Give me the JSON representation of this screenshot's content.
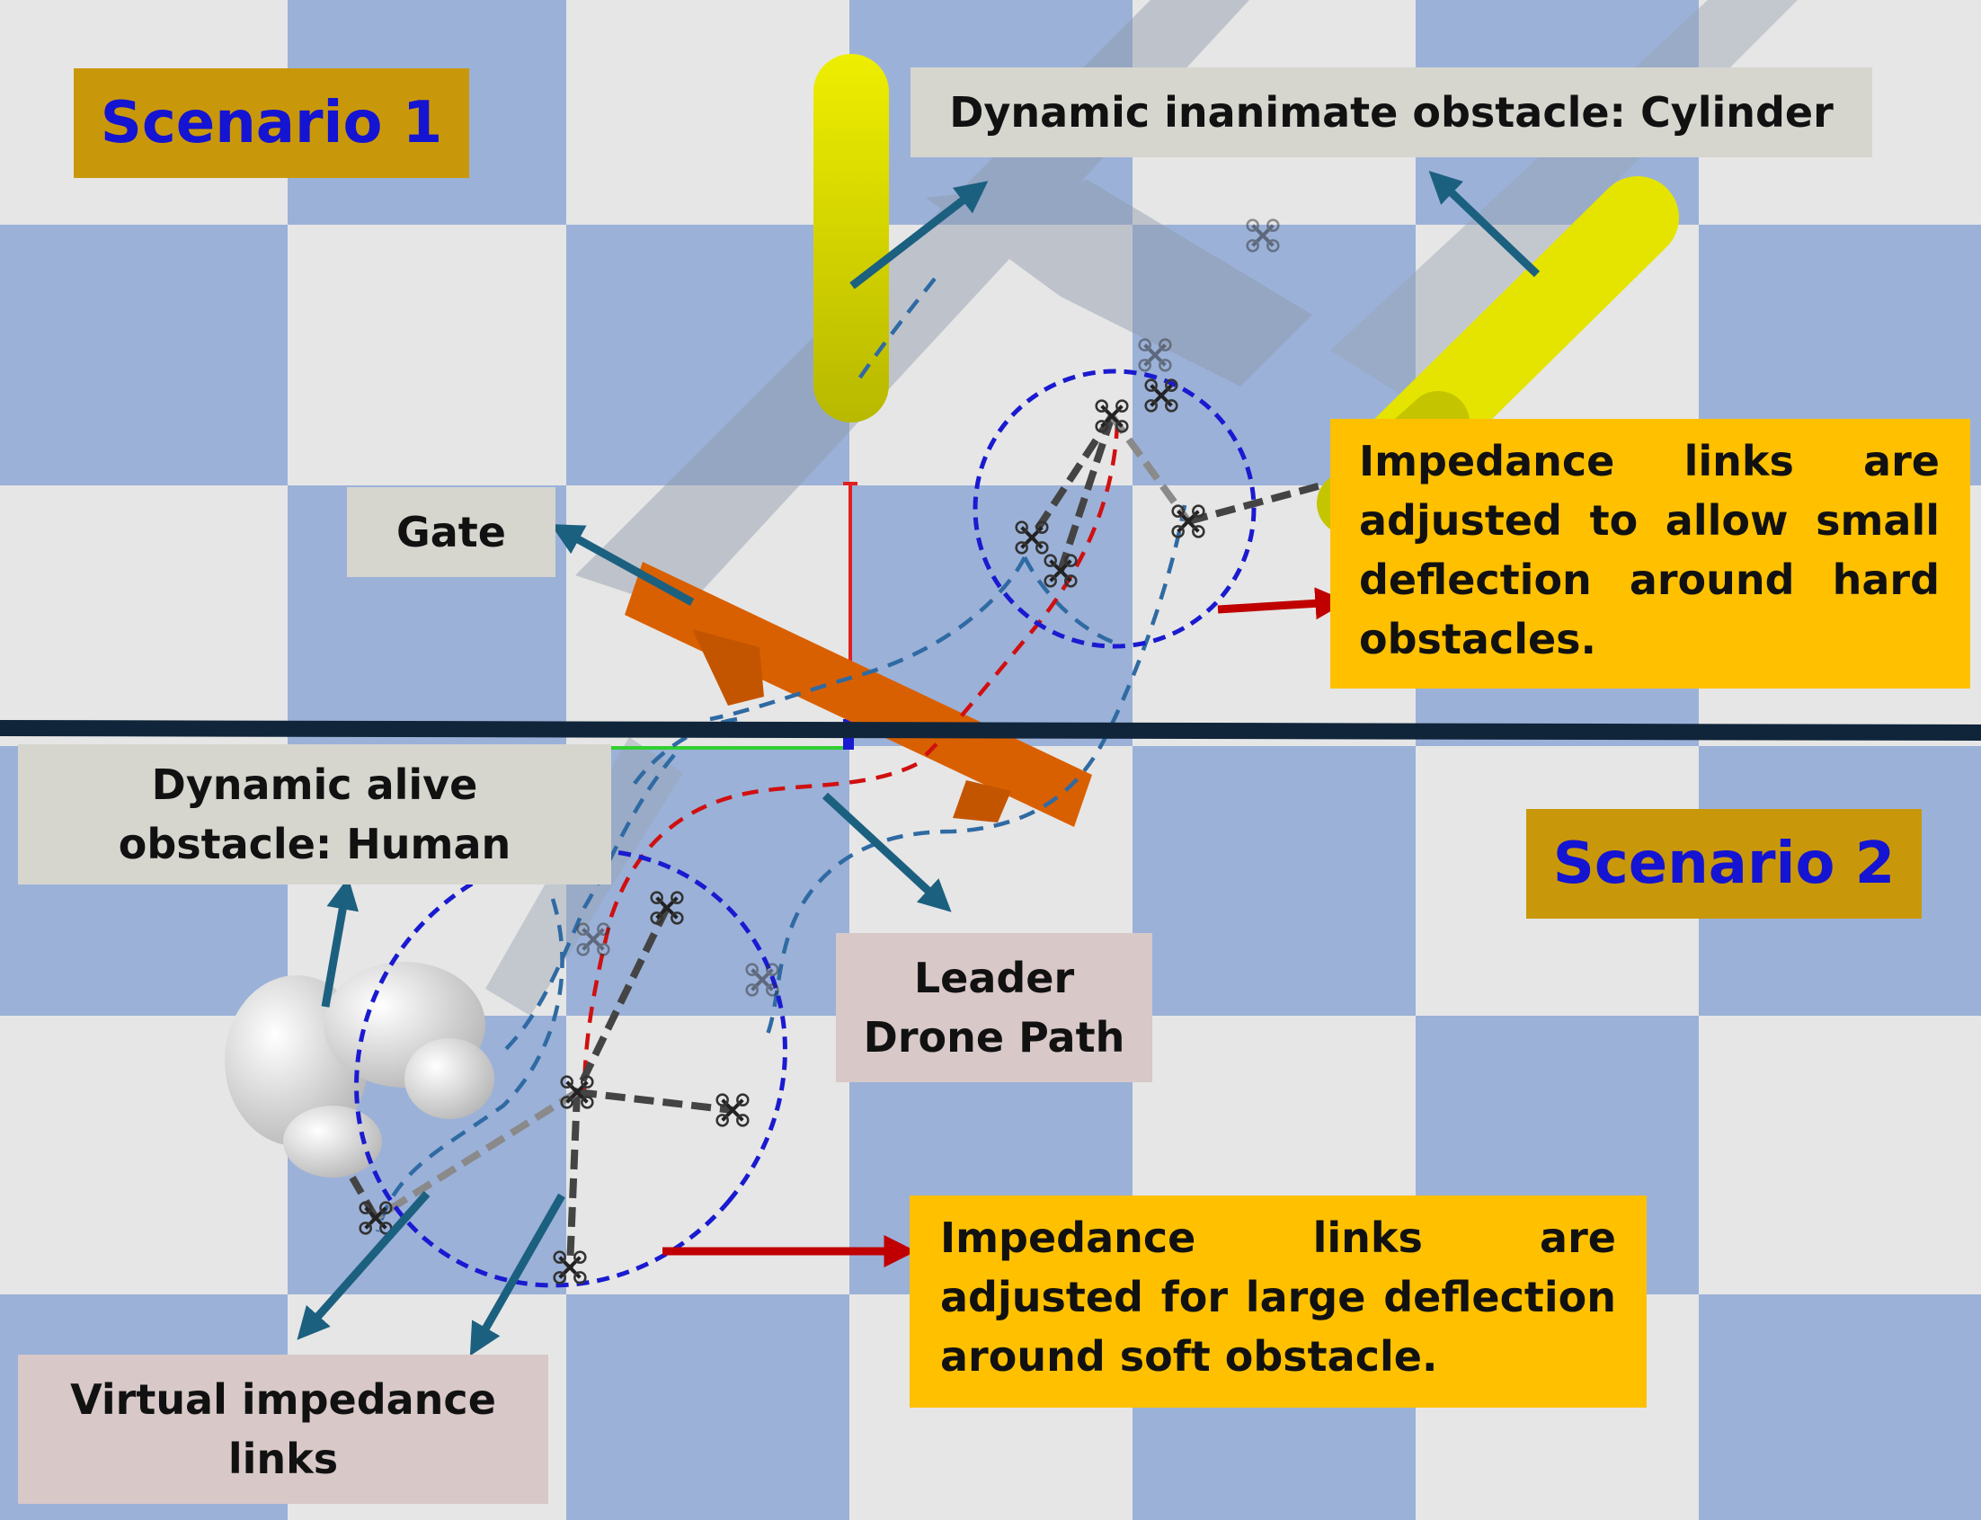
{
  "scenario1": "Scenario 1",
  "scenario2": "Scenario 2",
  "labels": {
    "cylinder": "Dynamic inanimate obstacle: Cylinder",
    "gate": "Gate",
    "human_line1": "Dynamic alive",
    "human_line2": "obstacle: Human",
    "leader_line1": "Leader",
    "leader_line2": "Drone Path",
    "virtual_line1": "Virtual impedance",
    "virtual_line2": "links"
  },
  "notes": {
    "hard": "Impedance links are adjusted to allow small deflection around hard obstacles.",
    "soft": "Impedance links are adjusted for large deflection around soft obstacle."
  },
  "colors": {
    "floor_blue": "#9bb1d8",
    "floor_white": "#e6e6e6",
    "callout_arrow": "#1c6080",
    "note_arrow": "#c00000",
    "leader_path": "#d01010",
    "follower_path": "#2f6aa3",
    "circle": "#1a1ad0",
    "divider": "#10253a"
  }
}
